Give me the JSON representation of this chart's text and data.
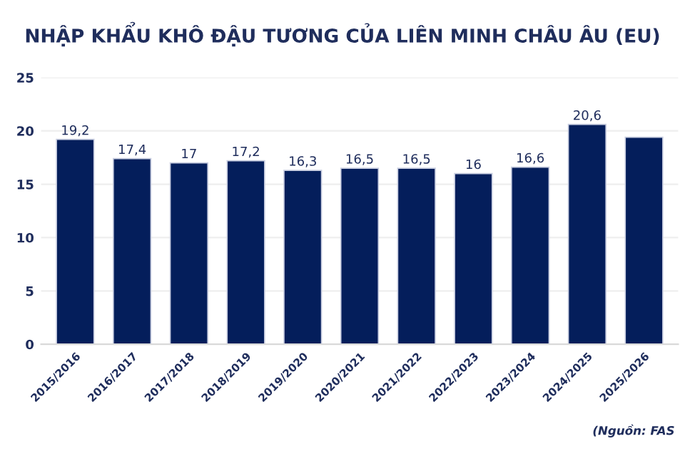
{
  "chart_data": {
    "type": "bar",
    "title": "NHẬP KHẨU KHÔ ĐẬU TƯƠNG CỦA LIÊN MINH CHÂU ÂU (EU)",
    "categories": [
      "2015/2016",
      "2016/2017",
      "2017/2018",
      "2018/2019",
      "2019/2020",
      "2020/2021",
      "2021/2022",
      "2022/2023",
      "2023/2024",
      "2024/2025",
      "2025/2026"
    ],
    "values": [
      19.2,
      17.4,
      17,
      17.2,
      16.3,
      16.5,
      16.5,
      16,
      16.6,
      20.6,
      19.4
    ],
    "value_labels": [
      "19,2",
      "17,4",
      "17",
      "17,2",
      "16,3",
      "16,5",
      "16,5",
      "16",
      "16,6",
      "20,6",
      null
    ],
    "color": "#041e5b",
    "ylim": [
      0,
      25
    ],
    "yticks": [
      0,
      5,
      10,
      15,
      20,
      25
    ],
    "grid": "y",
    "annotations": [
      "(Nguồn: FAS"
    ]
  }
}
